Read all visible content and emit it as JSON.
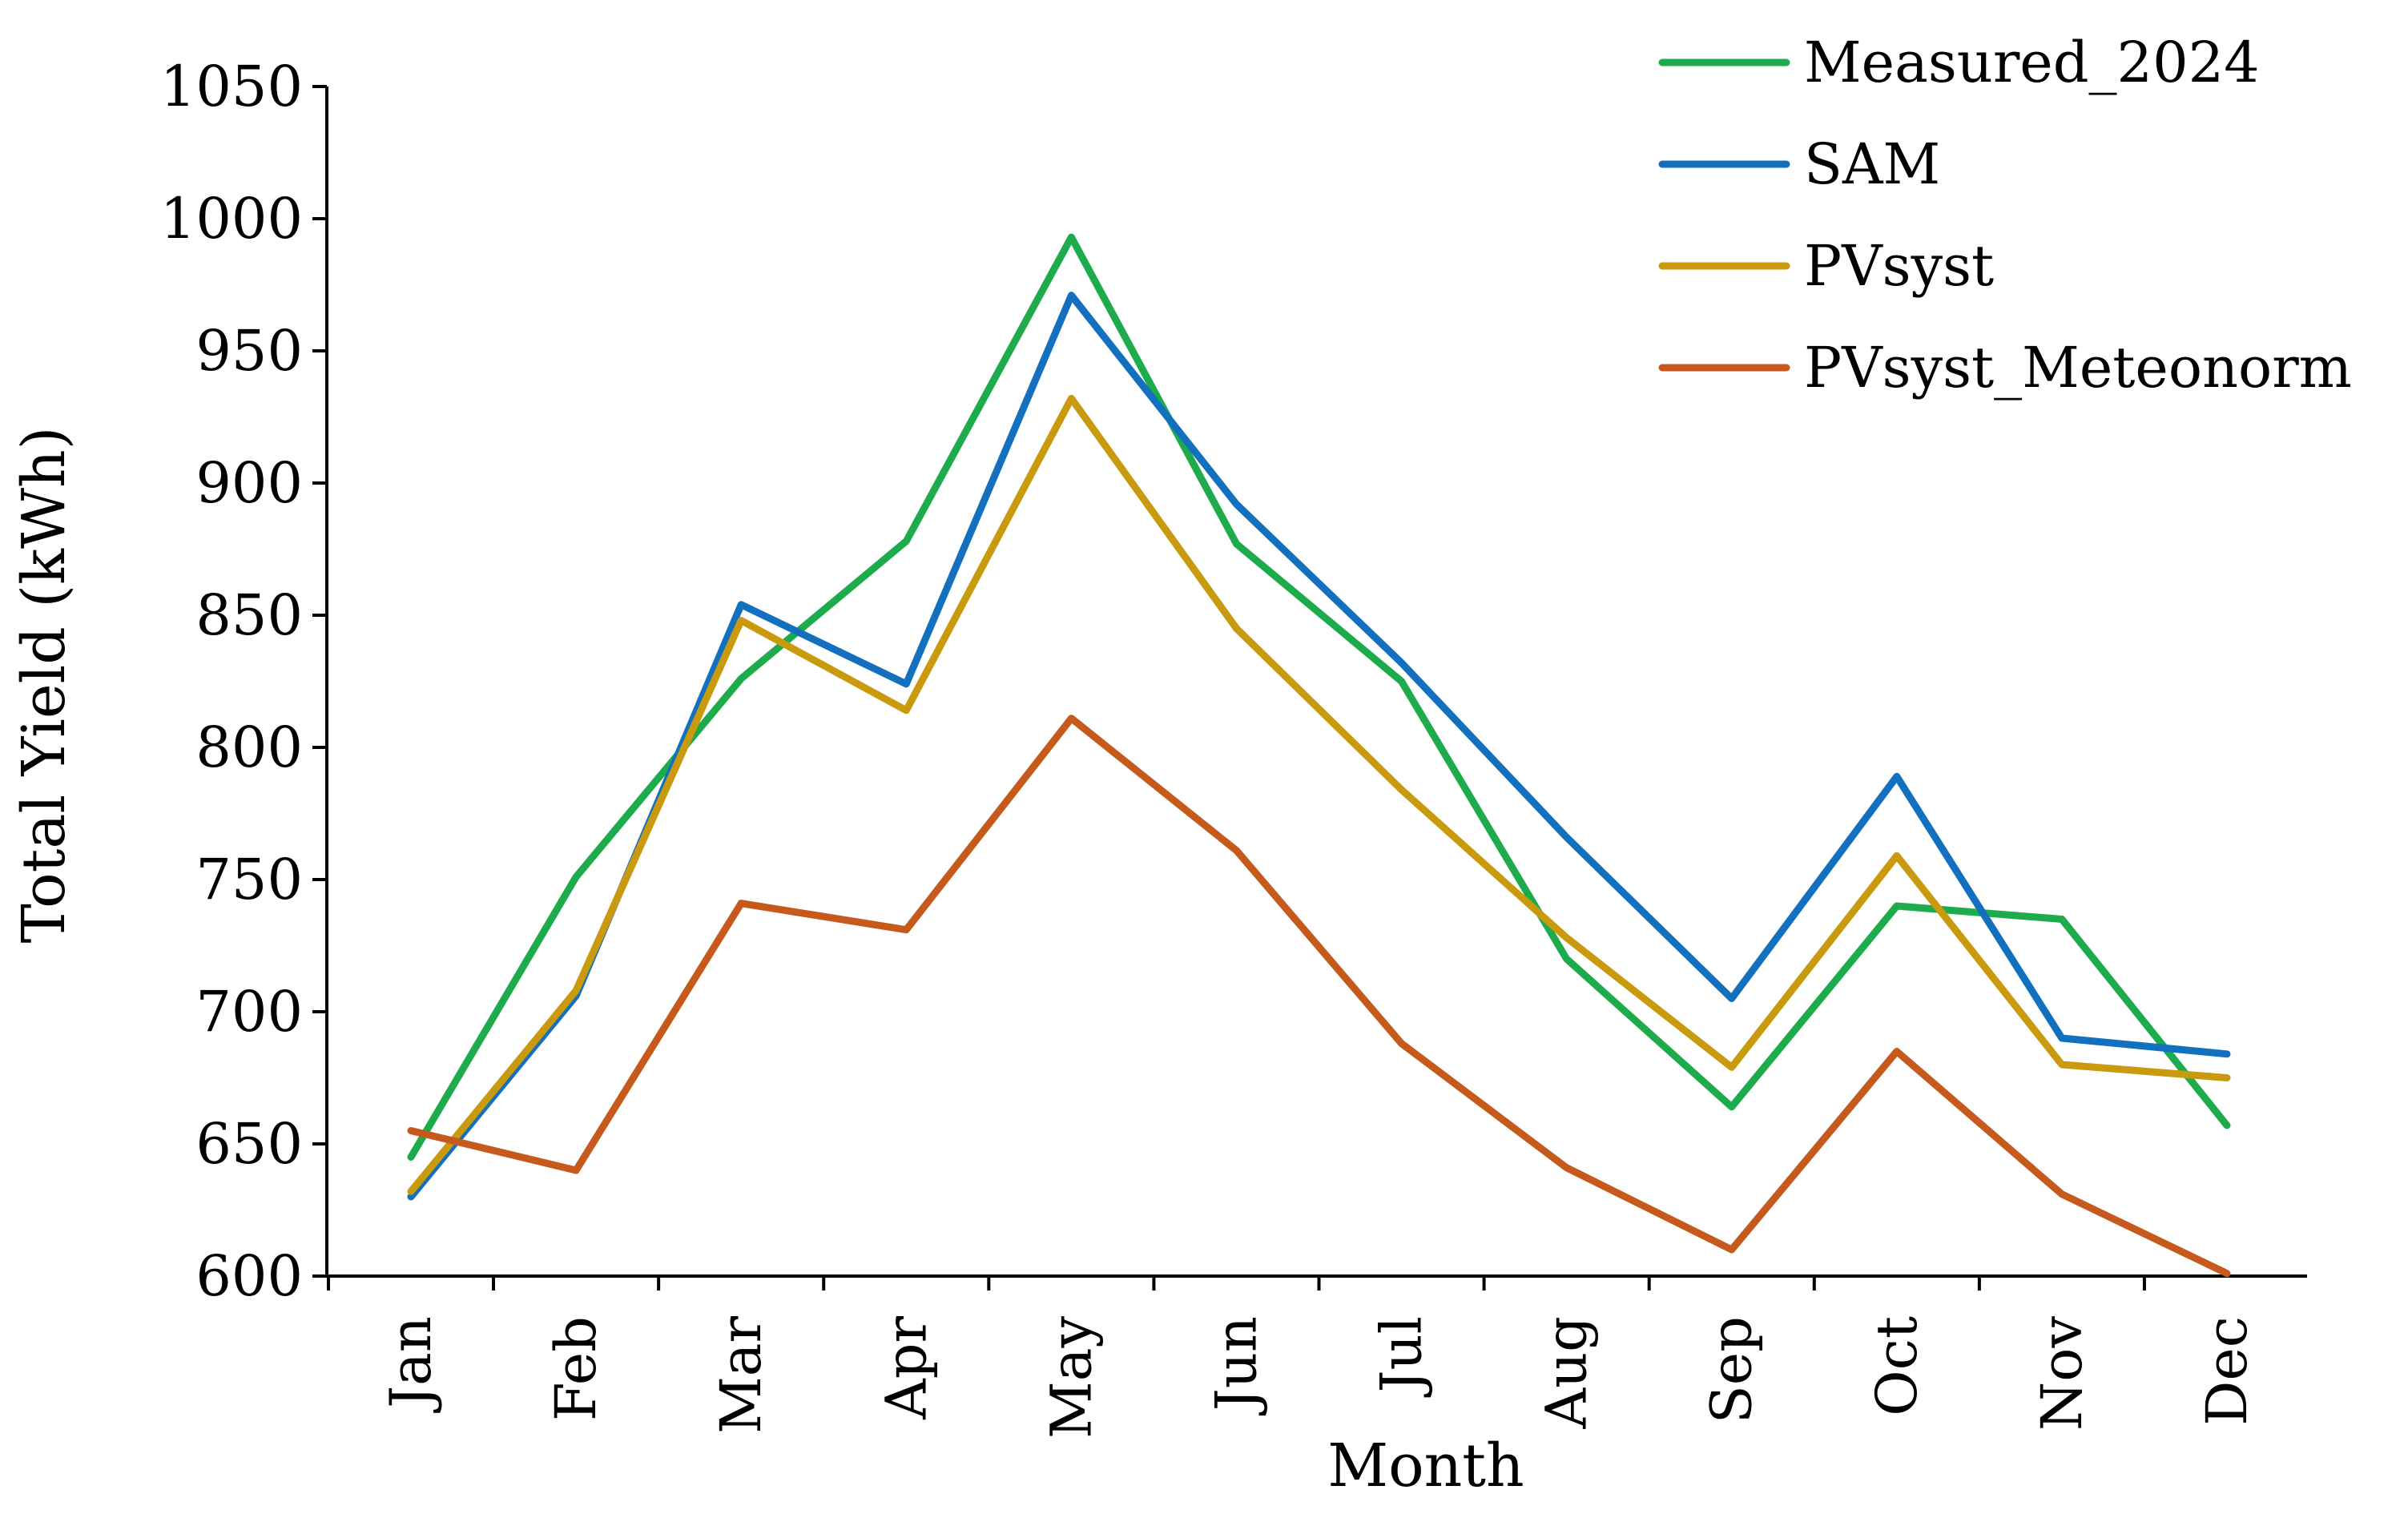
{
  "chart_data": {
    "type": "line",
    "title": "",
    "xlabel": "Month",
    "ylabel": "Total Yield (kWh)",
    "ylim": [
      600,
      1050
    ],
    "yticks": [
      600,
      650,
      700,
      750,
      800,
      850,
      900,
      950,
      1000,
      1050
    ],
    "categories": [
      "Jan",
      "Feb",
      "Mar",
      "Apr",
      "May",
      "Jun",
      "Jul",
      "Aug",
      "Sep",
      "Oct",
      "Nov",
      "Dec"
    ],
    "grid": false,
    "legend_position": "top-right",
    "series": [
      {
        "name": "Measured_2024",
        "color": "#1EAB4B",
        "values": [
          645,
          751,
          826,
          878,
          993,
          877,
          825,
          720,
          664,
          740,
          735,
          657
        ]
      },
      {
        "name": "SAM",
        "color": "#1370BE",
        "values": [
          630,
          706,
          854,
          824,
          971,
          892,
          832,
          766,
          705,
          789,
          690,
          684
        ]
      },
      {
        "name": "PVsyst",
        "color": "#C99A0E",
        "values": [
          632,
          708,
          848,
          814,
          932,
          845,
          784,
          728,
          679,
          759,
          680,
          675
        ]
      },
      {
        "name": "PVsyst_Meteonorm",
        "color": "#C55A1C",
        "values": [
          655,
          640,
          741,
          731,
          811,
          761,
          688,
          641,
          610,
          685,
          631,
          601
        ]
      }
    ]
  }
}
